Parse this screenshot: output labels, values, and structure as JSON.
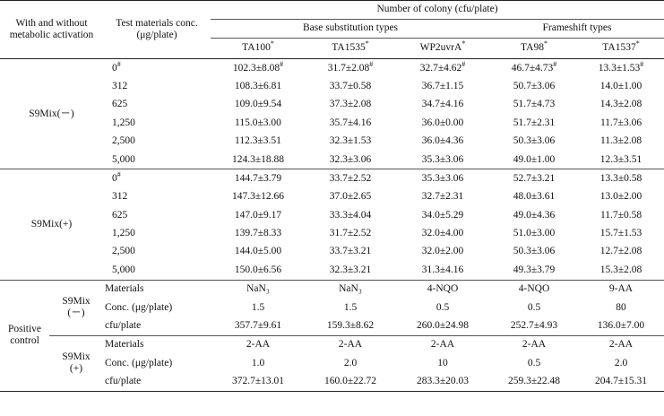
{
  "header": {
    "group_col": [
      "With and without",
      "metabolic activation"
    ],
    "conc_col": [
      "Test materials conc.",
      "(μg/plate)"
    ],
    "number_title": "Number of colony (cfu/plate)",
    "base_title": "Base substitution types",
    "frame_title": "Frameshift types",
    "strains": [
      "TA100",
      "TA1535",
      "WP2uvrA",
      "TA98",
      "TA1537"
    ],
    "strain_mark": "*"
  },
  "s9_minus": {
    "label": "S9Mix(－)",
    "rows": [
      {
        "conc": "0",
        "conc_mark": "#",
        "values": [
          "102.3±8.08",
          "31.7±2.08",
          "32.7±4.62",
          "46.7±4.73",
          "13.3±1.53"
        ],
        "value_mark": "#"
      },
      {
        "conc": "312",
        "values": [
          "108.3±6.81",
          "33.7±0.58",
          "36.7±1.15",
          "50.7±3.06",
          "14.0±1.00"
        ]
      },
      {
        "conc": "625",
        "values": [
          "109.0±9.54",
          "37.3±2.08",
          "34.7±4.16",
          "51.7±4.73",
          "14.3±2.08"
        ]
      },
      {
        "conc": "1,250",
        "values": [
          "115.0±3.00",
          "35.7±4.16",
          "36.0±0.00",
          "51.7±2.31",
          "11.7±3.06"
        ]
      },
      {
        "conc": "2,500",
        "values": [
          "112.3±3.51",
          "32.3±1.53",
          "36.0±4.36",
          "50.3±3.06",
          "11.3±2.08"
        ]
      },
      {
        "conc": "5,000",
        "values": [
          "124.3±18.88",
          "32.3±3.06",
          "35.3±3.06",
          "49.0±1.00",
          "12.3±3.51"
        ]
      }
    ]
  },
  "s9_plus": {
    "label": "S9Mix(+)",
    "rows": [
      {
        "conc": "0",
        "conc_mark": "#",
        "values": [
          "144.7±3.79",
          "33.7±2.52",
          "35.3±3.06",
          "52.7±3.21",
          "13.3±0.58"
        ]
      },
      {
        "conc": "312",
        "values": [
          "147.3±12.66",
          "37.0±2.65",
          "32.7±2.31",
          "48.0±3.61",
          "13.0±2.00"
        ]
      },
      {
        "conc": "625",
        "values": [
          "147.0±9.17",
          "33.3±4.04",
          "34.0±5.29",
          "49.0±4.36",
          "11.7±0.58"
        ]
      },
      {
        "conc": "1,250",
        "values": [
          "139.7±8.33",
          "31.7±2.52",
          "32.0±4.00",
          "51.0±3.00",
          "15.7±1.53"
        ]
      },
      {
        "conc": "2,500",
        "values": [
          "144.0±5.00",
          "33.7±3.21",
          "32.0±2.00",
          "50.3±3.06",
          "12.7±2.08"
        ]
      },
      {
        "conc": "5,000",
        "values": [
          "150.0±6.56",
          "32.3±3.21",
          "31.3±4.16",
          "49.3±3.79",
          "15.3±2.08"
        ]
      }
    ]
  },
  "positive": {
    "label": [
      "Positive",
      "control"
    ],
    "minus": {
      "label": [
        "S9Mix",
        "(－)"
      ],
      "materials_label": "Materials",
      "materials": [
        "NaN₃",
        "NaN₃",
        "4-NQO",
        "4-NQO",
        "9-AA"
      ],
      "conc_label": "Conc. (μg/plate)",
      "conc": [
        "1.5",
        "1.5",
        "0.5",
        "0.5",
        "80"
      ],
      "cfu_label": "cfu/plate",
      "cfu": [
        "357.7±9.61",
        "159.3±8.62",
        "260.0±24.98",
        "252.7±4.93",
        "136.0±7.00"
      ]
    },
    "plus": {
      "label": [
        "S9Mix",
        "(+)"
      ],
      "materials_label": "Materials",
      "materials": [
        "2-AA",
        "2-AA",
        "2-AA",
        "2-AA",
        "2-AA"
      ],
      "conc_label": "Conc. (μg/plate)",
      "conc": [
        "1.0",
        "2.0",
        "10",
        "0.5",
        "2.0"
      ],
      "cfu_label": "cfu/plate",
      "cfu": [
        "372.7±13.01",
        "160.0±22.72",
        "283.3±20.03",
        "259.3±22.48",
        "204.7±15.31"
      ]
    }
  }
}
